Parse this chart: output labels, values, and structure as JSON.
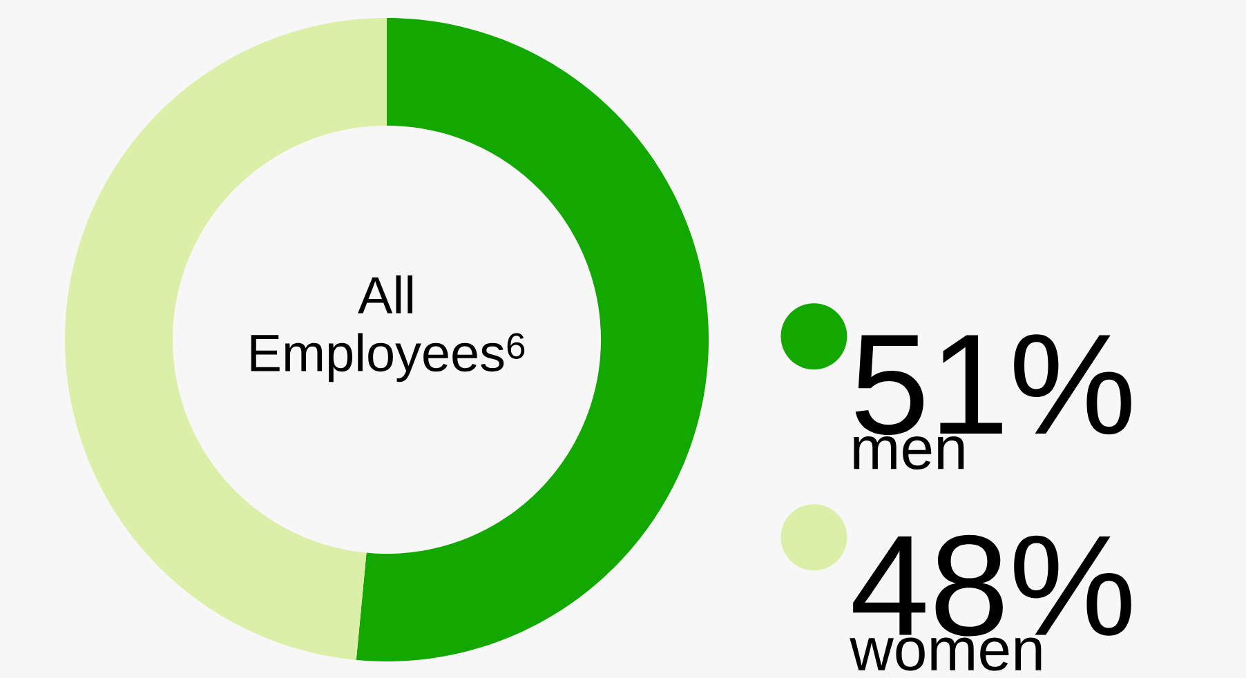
{
  "chart_data": {
    "type": "donut",
    "title": "All Employees$^{6}$",
    "categories": [
      "men",
      "women"
    ],
    "values": [
      51,
      48
    ],
    "value_labels": [
      "51%",
      "48%"
    ],
    "colors": [
      "#12a800",
      "#dcefa8"
    ],
    "legend": "right"
  }
}
